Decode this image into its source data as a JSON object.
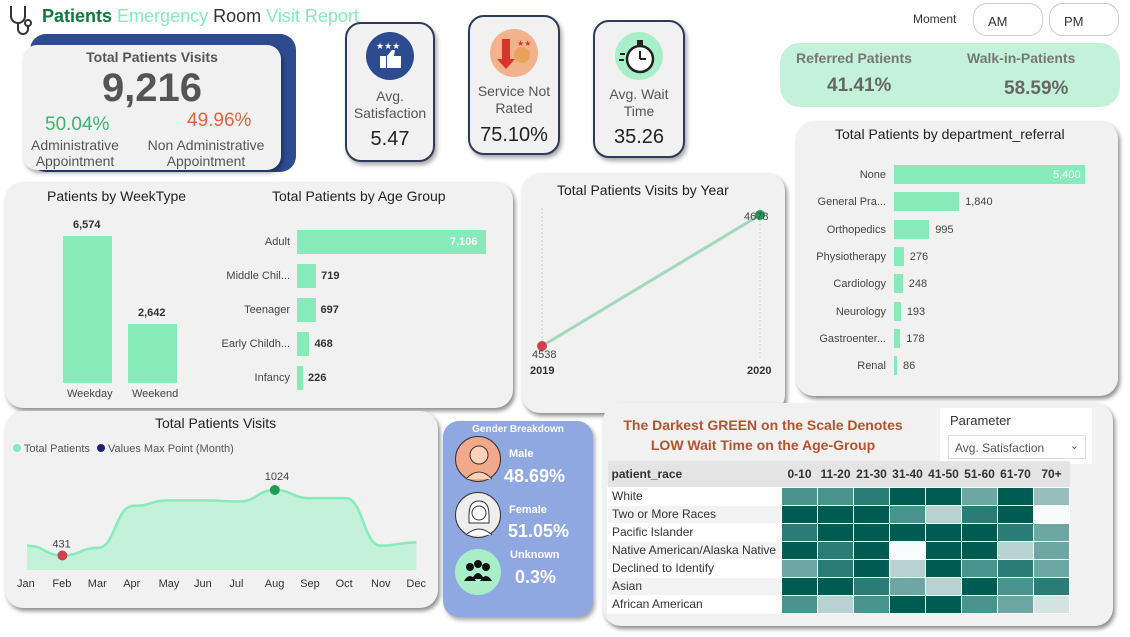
{
  "header": {
    "title_w1": "Patients",
    "title_w2": "Emergency",
    "title_w3": "Room",
    "title_w4": "Visit Report",
    "moment_label": "Moment",
    "am": "AM",
    "pm": "PM"
  },
  "total_visits": {
    "title": "Total Patients Visits",
    "value": "9,216",
    "admin_pct": "50.04%",
    "admin_label_1": "Administrative",
    "admin_label_2": "Appointment",
    "nonadmin_pct": "49.96%",
    "nonadmin_label_1": "Non Administrative",
    "nonadmin_label_2": "Appointment"
  },
  "kpis": {
    "satisfaction": {
      "label_1": "Avg.",
      "label_2": "Satisfaction",
      "value": "5.47",
      "icon": "thumbs-up-stars-icon"
    },
    "not_rated": {
      "label_1": "Service Not",
      "label_2": "Rated",
      "value": "75.10%",
      "icon": "sad-rating-icon"
    },
    "wait": {
      "label_1": "Avg. Wait",
      "label_2": "Time",
      "value": "35.26",
      "icon": "stopwatch-icon"
    }
  },
  "referral": {
    "referred_label": "Referred Patients",
    "referred_value": "41.41%",
    "walkin_label": "Walk-in-Patients",
    "walkin_value": "58.59%"
  },
  "weektype": {
    "title": "Patients by WeekType",
    "bars": [
      {
        "label": "Weekday",
        "value": 6574,
        "text": "6,574"
      },
      {
        "label": "Weekend",
        "value": 2642,
        "text": "2,642"
      }
    ]
  },
  "agegroup": {
    "title": "Total Patients by Age Group",
    "bars": [
      {
        "label": "Adult",
        "value": 7106,
        "text": "7,106"
      },
      {
        "label": "Middle Chil...",
        "value": 719,
        "text": "719"
      },
      {
        "label": "Teenager",
        "value": 697,
        "text": "697"
      },
      {
        "label": "Early Childh...",
        "value": 468,
        "text": "468"
      },
      {
        "label": "Infancy",
        "value": 226,
        "text": "226"
      }
    ]
  },
  "year": {
    "title": "Total Patients Visits by Year",
    "start_label": "4538",
    "end_label": "4678",
    "x1": "2019",
    "x2": "2020"
  },
  "dept": {
    "title": "Total Patients by department_referral",
    "bars": [
      {
        "label": "None",
        "value": 5400,
        "text": "5,400"
      },
      {
        "label": "General Pra...",
        "value": 1840,
        "text": "1,840"
      },
      {
        "label": "Orthopedics",
        "value": 995,
        "text": "995"
      },
      {
        "label": "Physiotherapy",
        "value": 276,
        "text": "276"
      },
      {
        "label": "Cardiology",
        "value": 248,
        "text": "248"
      },
      {
        "label": "Neurology",
        "value": 193,
        "text": "193"
      },
      {
        "label": "Gastroenter...",
        "value": 178,
        "text": "178"
      },
      {
        "label": "Renal",
        "value": 86,
        "text": "86"
      }
    ]
  },
  "monthly": {
    "title": "Total Patients Visits",
    "legend_total": "Total Patients",
    "legend_max": "Values Max Point (Month)",
    "min_label": "431",
    "max_label": "1024",
    "months": [
      "Jan",
      "Feb",
      "Mar",
      "Apr",
      "May",
      "Jun",
      "Jul",
      "Aug",
      "Sep",
      "Oct",
      "Nov",
      "Dec"
    ],
    "values": [
      520,
      431,
      500,
      880,
      930,
      930,
      920,
      1024,
      950,
      950,
      520,
      550
    ]
  },
  "gender": {
    "title": "Gender Breakdown",
    "male_label": "Male",
    "male_value": "48.69%",
    "female_label": "Female",
    "female_value": "51.05%",
    "unknown_label": "Unknown",
    "unknown_value": "0.3%"
  },
  "heatmap": {
    "title_1": "The Darkest GREEN on the Scale Denotes",
    "title_2": "LOW Wait Time on the Age-Group",
    "param_label": "Parameter",
    "param_value": "Avg. Satisfaction",
    "row_header": "patient_race",
    "cols": [
      "0-10",
      "11-20",
      "21-30",
      "31-40",
      "41-50",
      "51-60",
      "61-70",
      "70+"
    ],
    "rows": [
      {
        "name": "White",
        "cells": [
          3,
          3,
          2,
          1,
          1,
          4,
          1,
          5
        ]
      },
      {
        "name": "Two or More Races",
        "cells": [
          1,
          1,
          1,
          3,
          6,
          2,
          1,
          9
        ]
      },
      {
        "name": "Pacific Islander",
        "cells": [
          2,
          1,
          1,
          1,
          1,
          1,
          2,
          4
        ]
      },
      {
        "name": "Native American/Alaska Native",
        "cells": [
          1,
          2,
          1,
          9,
          1,
          1,
          6,
          4
        ]
      },
      {
        "name": "Declined to Identify",
        "cells": [
          4,
          2,
          1,
          6,
          1,
          3,
          2,
          4
        ]
      },
      {
        "name": "Asian",
        "cells": [
          1,
          1,
          2,
          4,
          6,
          1,
          3,
          2
        ]
      },
      {
        "name": "African American",
        "cells": [
          3,
          6,
          3,
          1,
          1,
          3,
          4,
          7
        ]
      }
    ]
  }
}
